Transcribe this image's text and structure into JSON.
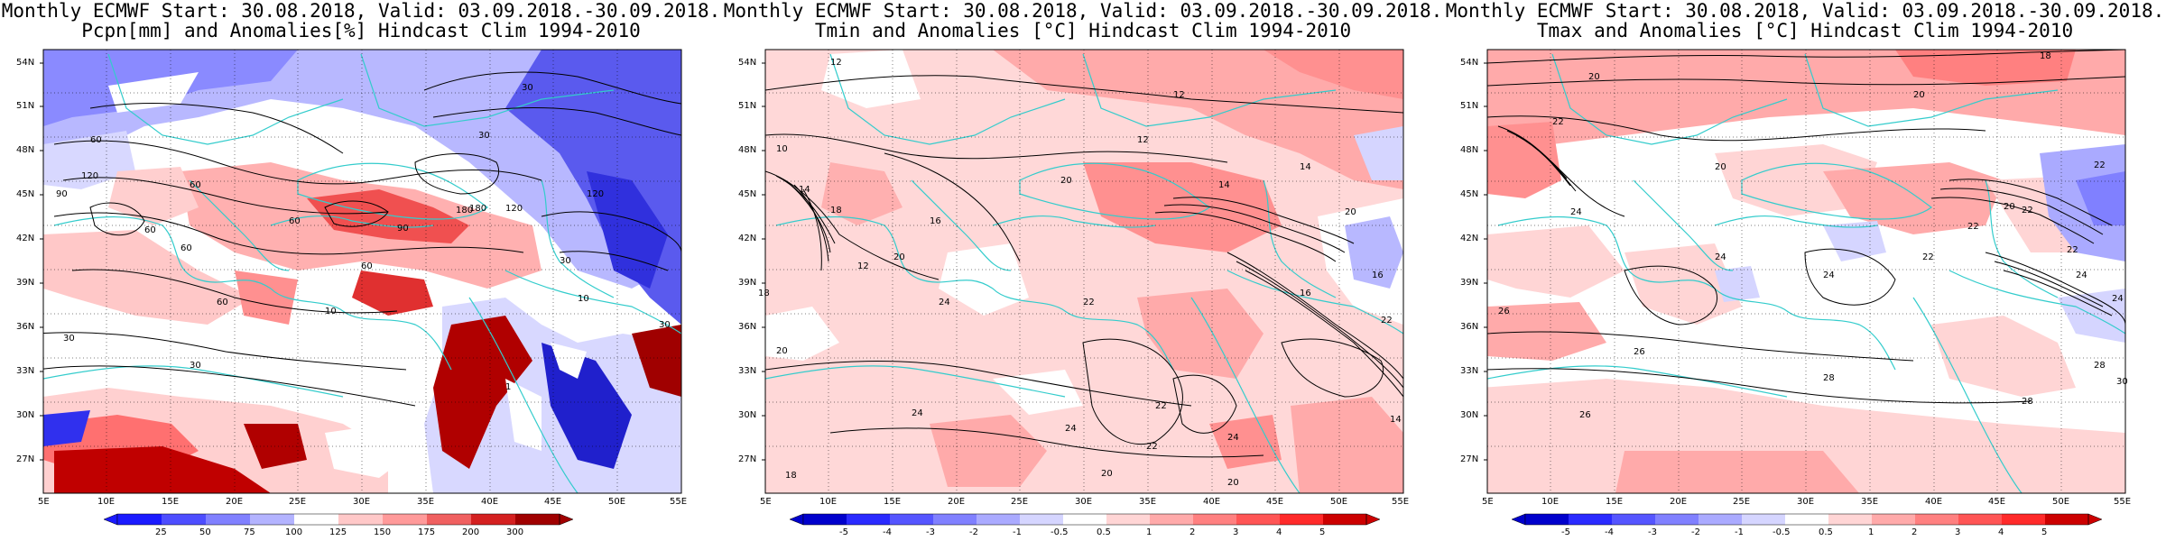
{
  "panels": [
    {
      "title_line1": "Monthly ECMWF Start: 30.08.2018, Valid: 03.09.2018.-30.09.2018.",
      "title_line2": "Pcpn[mm] and Anomalies[%] Hindcast Clim 1994-2010",
      "lat_labels": [
        "54N",
        "51N",
        "48N",
        "45N",
        "42N",
        "39N",
        "36N",
        "33N",
        "30N",
        "27N"
      ],
      "lon_labels": [
        "5E",
        "10E",
        "15E",
        "20E",
        "25E",
        "30E",
        "35E",
        "40E",
        "45E",
        "50E",
        "55E"
      ],
      "colorbar": {
        "ticks": [
          "25",
          "50",
          "75",
          "100",
          "125",
          "150",
          "175",
          "200",
          "300"
        ],
        "colors": [
          "#1a1aff",
          "#4d4dff",
          "#8080ff",
          "#b3b3ff",
          "#d9d9ff",
          "#ffffff",
          "#ffc8c8",
          "#ff9a9a",
          "#f06060",
          "#d42020",
          "#a00000"
        ]
      },
      "contour_labels": [
        "30",
        "60",
        "30",
        "120",
        "60",
        "60",
        "90",
        "180",
        "120",
        "60",
        "30",
        "60",
        "10",
        "10",
        "30",
        "1",
        "30",
        "60",
        "30",
        "60",
        "120",
        "180",
        "90"
      ]
    },
    {
      "title_line1": "Monthly ECMWF Start: 30.08.2018, Valid: 03.09.2018.-30.09.2018.",
      "title_line2": "Tmin and Anomalies [°C] Hindcast Clim 1994-2010",
      "lat_labels": [
        "54N",
        "51N",
        "48N",
        "45N",
        "42N",
        "39N",
        "36N",
        "33N",
        "30N",
        "27N"
      ],
      "lon_labels": [
        "5E",
        "10E",
        "15E",
        "20E",
        "25E",
        "30E",
        "35E",
        "40E",
        "45E",
        "50E",
        "55E"
      ],
      "colorbar": {
        "ticks": [
          "-5",
          "-4",
          "-3",
          "-2",
          "-1",
          "-0.5",
          "0.5",
          "1",
          "2",
          "3",
          "4",
          "5"
        ],
        "colors": [
          "#0000cc",
          "#2a2aff",
          "#5555ff",
          "#8080ff",
          "#aaaaff",
          "#d5d5ff",
          "#ffffff",
          "#ffd5d5",
          "#ffaaaa",
          "#ff8080",
          "#ff5555",
          "#ff2a2a",
          "#cc0000"
        ]
      },
      "contour_labels": [
        "12",
        "12",
        "12",
        "14",
        "10",
        "14",
        "20",
        "14",
        "16",
        "18",
        "20",
        "12",
        "16",
        "18",
        "20",
        "24",
        "20",
        "22",
        "24",
        "22",
        "24",
        "20",
        "18",
        "22",
        "20",
        "24",
        "16",
        "22",
        "14"
      ]
    },
    {
      "title_line1": "Monthly ECMWF Start: 30.08.2018, Valid: 03.09.2018.-30.09.2018.",
      "title_line2": "Tmax and Anomalies [°C] Hindcast Clim 1994-2010",
      "lat_labels": [
        "54N",
        "51N",
        "48N",
        "45N",
        "42N",
        "39N",
        "36N",
        "33N",
        "30N",
        "27N"
      ],
      "lon_labels": [
        "5E",
        "10E",
        "15E",
        "20E",
        "25E",
        "30E",
        "35E",
        "40E",
        "45E",
        "50E",
        "55E"
      ],
      "colorbar": {
        "ticks": [
          "-5",
          "-4",
          "-3",
          "-2",
          "-1",
          "-0.5",
          "0.5",
          "1",
          "2",
          "3",
          "4",
          "5"
        ],
        "colors": [
          "#0000cc",
          "#2a2aff",
          "#5555ff",
          "#8080ff",
          "#aaaaff",
          "#d5d5ff",
          "#ffffff",
          "#ffd5d5",
          "#ffaaaa",
          "#ff8080",
          "#ff5555",
          "#ff2a2a",
          "#cc0000"
        ]
      },
      "contour_labels": [
        "18",
        "20",
        "20",
        "22",
        "22",
        "20",
        "24",
        "22",
        "20",
        "24",
        "22",
        "24",
        "26",
        "22",
        "24",
        "26",
        "28",
        "30",
        "28",
        "22",
        "26",
        "24",
        "28"
      ]
    }
  ],
  "coast_color": "#33cccc",
  "contour_color": "#000000"
}
